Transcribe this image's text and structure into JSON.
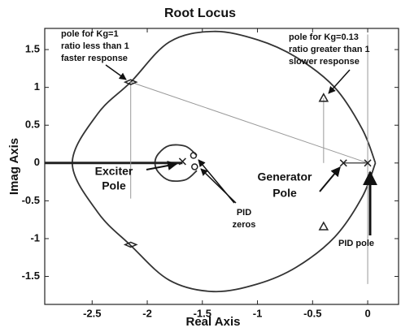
{
  "chart_data": {
    "type": "line",
    "title": "Root Locus",
    "xlabel": "Real Axis",
    "ylabel": "Imag Axis",
    "xlim": [
      -2.93,
      0.28
    ],
    "ylim": [
      -1.87,
      1.78
    ],
    "xticks": [
      -2.5,
      -2,
      -1.5,
      -1,
      -0.5,
      0
    ],
    "yticks": [
      -1.5,
      -1,
      -0.5,
      0,
      0.5,
      1,
      1.5
    ],
    "series": [
      {
        "color": "#333333",
        "x": [
          0.07,
          -0.05,
          -0.3,
          -0.65,
          -1.0,
          -1.4,
          -1.8,
          -2.15,
          -2.45,
          -2.68,
          -2.45,
          -2.15,
          -1.8,
          -1.4,
          -1.0,
          -0.65,
          -0.3,
          -0.05,
          0.07
        ],
        "y": [
          0,
          0.45,
          1.0,
          1.4,
          1.63,
          1.74,
          1.6,
          1.07,
          0.65,
          0,
          -0.65,
          -1.09,
          -1.55,
          -1.7,
          -1.6,
          -1.38,
          -0.98,
          -0.45,
          0
        ]
      },
      {
        "color": "#333333",
        "x": [
          -1.55,
          -1.65,
          -1.8,
          -1.9,
          -1.93,
          -1.9,
          -1.8,
          -1.65,
          -1.55
        ],
        "y": [
          0.1,
          0.22,
          0.23,
          0.12,
          0,
          -0.12,
          -0.23,
          -0.22,
          -0.1
        ]
      },
      {
        "color": "#222222",
        "x": [
          -2.93,
          -1.68
        ],
        "y": [
          0,
          0
        ]
      },
      {
        "color": "#555555",
        "x": [
          -0.22,
          0
        ],
        "y": [
          0,
          0
        ]
      },
      {
        "color": "#999999",
        "x": [
          -2.15,
          0
        ],
        "y": [
          1.07,
          0
        ]
      },
      {
        "color": "#999999",
        "x": [
          -2.15,
          -2.15
        ],
        "y": [
          1.07,
          -0.47
        ]
      },
      {
        "color": "#999999",
        "x": [
          -0.4,
          -0.4
        ],
        "y": [
          0.86,
          0
        ]
      },
      {
        "color": "#999999",
        "x": [
          0,
          0
        ],
        "y": [
          1.7,
          -1.6
        ]
      }
    ],
    "markers": [
      {
        "marker": "x",
        "color": "#222222",
        "x": [
          -1.68,
          -0.22,
          0
        ],
        "y": [
          0.02,
          0,
          0
        ]
      },
      {
        "marker": "o",
        "color": "#222222",
        "x": [
          -1.58,
          -1.57
        ],
        "y": [
          0.1,
          -0.05
        ]
      },
      {
        "marker": "triangle",
        "color": "#222222",
        "x": [
          -0.4,
          -0.4
        ],
        "y": [
          0.86,
          -0.84
        ]
      },
      {
        "marker": "diamond",
        "color": "#222222",
        "x": [
          -2.15,
          -2.15
        ],
        "y": [
          1.07,
          -1.08
        ]
      }
    ],
    "annotations": [
      [
        "pole for Kg=1",
        "ratio less than 1",
        "faster response"
      ],
      [
        "pole for Kg=0.13",
        "ratio greater than 1",
        "slower response"
      ],
      [
        "Exciter",
        "Pole"
      ],
      [
        "Generator",
        "Pole"
      ],
      [
        "PID",
        "zeros"
      ],
      [
        "PID pole"
      ]
    ]
  }
}
